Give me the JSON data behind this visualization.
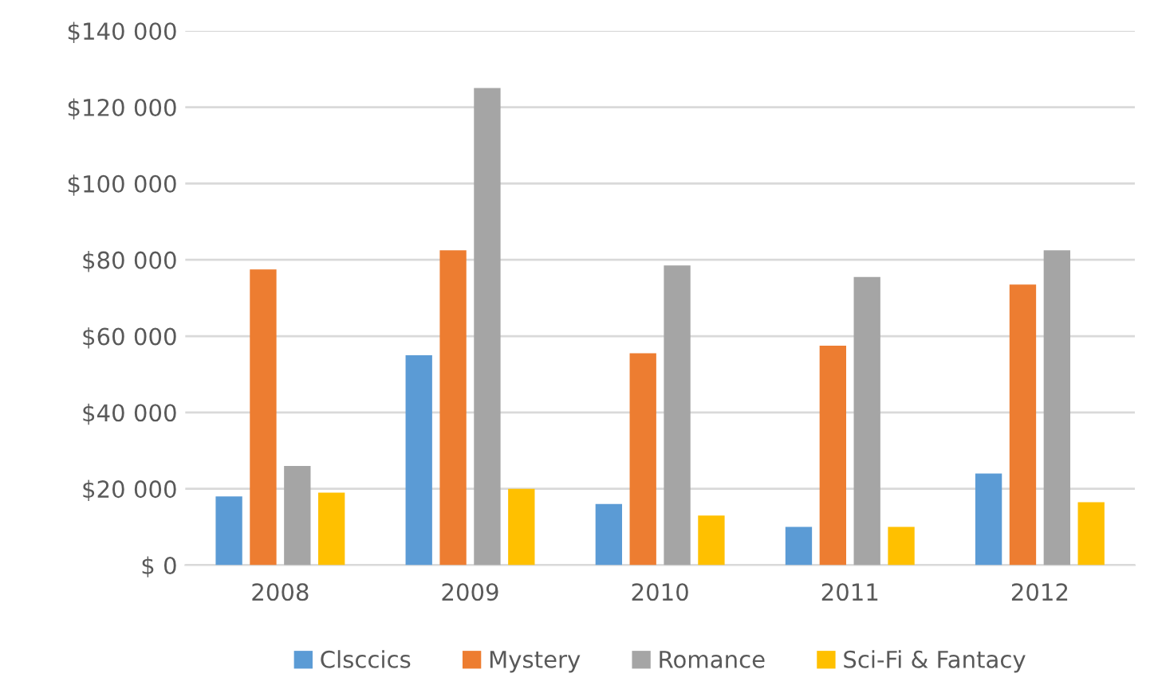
{
  "chart_data": {
    "type": "bar",
    "categories": [
      "2008",
      "2009",
      "2010",
      "2011",
      "2012"
    ],
    "series": [
      {
        "name": "Clsccics",
        "color": "#5b9bd5",
        "values": [
          18000,
          55000,
          16000,
          10000,
          24000
        ]
      },
      {
        "name": "Mystery",
        "color": "#ed7d31",
        "values": [
          77500,
          82500,
          55500,
          57500,
          73500
        ]
      },
      {
        "name": "Romance",
        "color": "#a5a5a5",
        "values": [
          26000,
          125000,
          78500,
          75500,
          82500
        ]
      },
      {
        "name": "Sci-Fi & Fantacy",
        "color": "#ffc000",
        "values": [
          19000,
          20000,
          13000,
          10000,
          16500
        ]
      }
    ],
    "ylim": [
      0,
      140000
    ],
    "yticks": [
      {
        "value": 0,
        "label": "$ 0"
      },
      {
        "value": 20000,
        "label": "$20 000"
      },
      {
        "value": 40000,
        "label": "$40 000"
      },
      {
        "value": 60000,
        "label": "$60 000"
      },
      {
        "value": 80000,
        "label": "$80 000"
      },
      {
        "value": 100000,
        "label": "$100 000"
      },
      {
        "value": 120000,
        "label": "$120 000"
      },
      {
        "value": 140000,
        "label": "$140 000"
      }
    ],
    "grid": "y",
    "legend": "bottom"
  }
}
